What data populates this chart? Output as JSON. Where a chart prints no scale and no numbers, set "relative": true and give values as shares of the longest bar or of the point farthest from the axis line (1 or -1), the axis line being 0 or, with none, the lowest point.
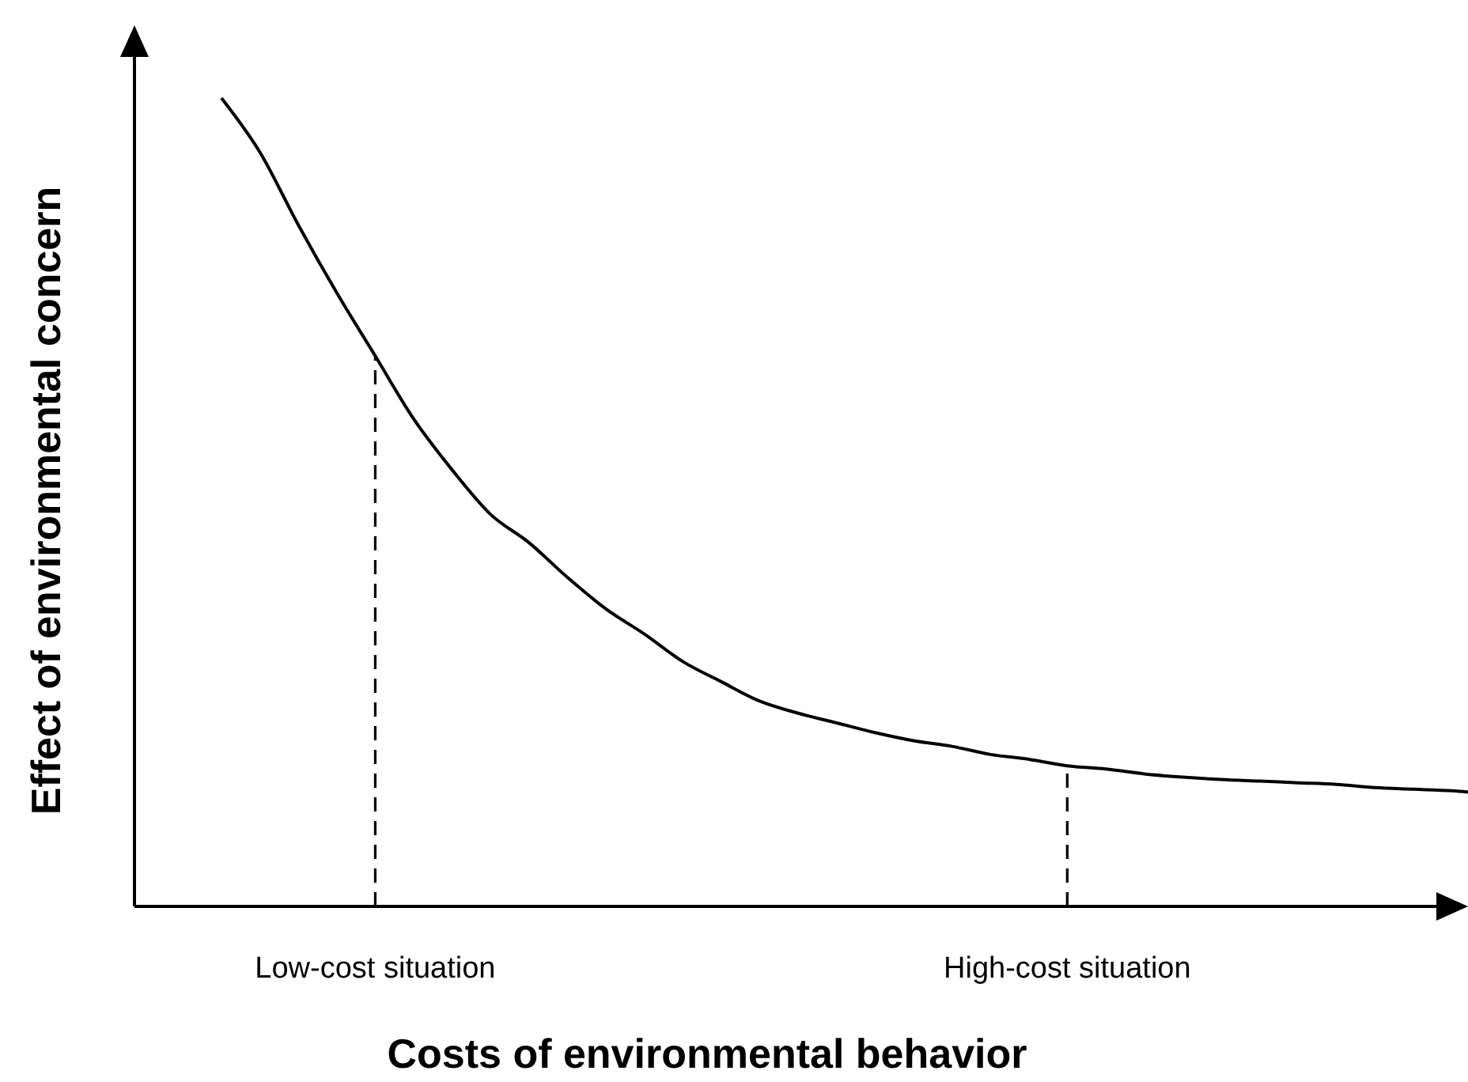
{
  "chart_data": {
    "type": "line",
    "relative": true,
    "xlabel": "Costs of environmental behavior",
    "ylabel": "Effect of environmental concern",
    "categories": [
      null,
      null,
      null,
      null,
      "Low-cost situation",
      null,
      null,
      null,
      null,
      null,
      null,
      null,
      null,
      null,
      null,
      null,
      null,
      null,
      null,
      null,
      null,
      null,
      "High-cost situation",
      null,
      null,
      null,
      null,
      null,
      null,
      null,
      null,
      null,
      null,
      null
    ],
    "series": [
      {
        "color": "#000000",
        "values": [
          1.0,
          0.933,
          0.843,
          0.759,
          0.681,
          0.603,
          0.54,
          0.485,
          0.45,
          0.407,
          0.368,
          0.337,
          0.303,
          0.278,
          0.254,
          0.239,
          0.227,
          0.215,
          0.205,
          0.198,
          0.188,
          0.182,
          0.174,
          0.17,
          0.164,
          0.16,
          0.157,
          0.155,
          0.153,
          0.151,
          0.147,
          0.145,
          0.143,
          0.139
        ]
      }
    ],
    "ref_lines": [
      {
        "axis": "x",
        "value": "Low-cost situation",
        "line_style": "dashed"
      },
      {
        "axis": "x",
        "value": "High-cost situation",
        "line_style": "dashed"
      }
    ],
    "marker": "none",
    "line_style": "solid"
  }
}
